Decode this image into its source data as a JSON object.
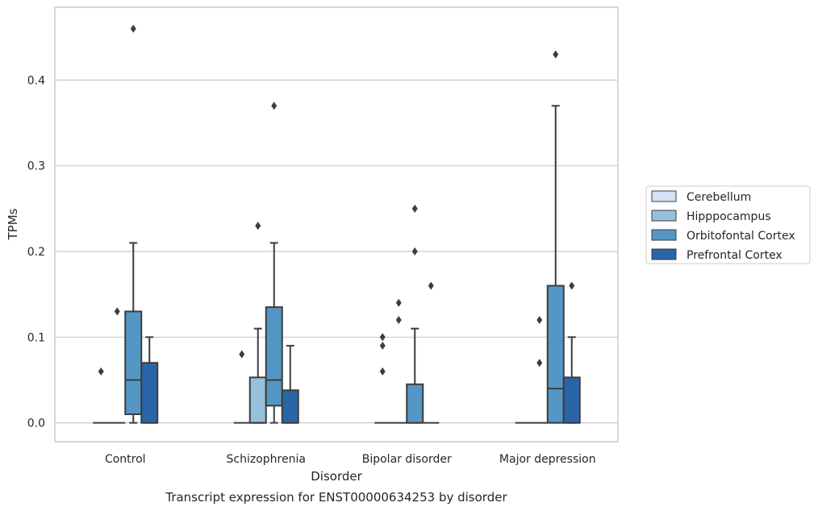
{
  "caption": "Transcript expression for ENST00000634253 by disorder",
  "chart_data": {
    "type": "box",
    "xlabel": "Disorder",
    "ylabel": "TPMs",
    "ylim": [
      -0.022,
      0.485
    ],
    "yticks": [
      0.0,
      0.1,
      0.2,
      0.3,
      0.4
    ],
    "ytick_labels": [
      "0.0",
      "0.1",
      "0.2",
      "0.3",
      "0.4"
    ],
    "grid": "horizontal",
    "legend_position": "right",
    "categories": [
      "Control",
      "Schizophrenia",
      "Bipolar disorder",
      "Major depression"
    ],
    "series": [
      {
        "name": "Cerebellum",
        "color": "#d4e3f3",
        "boxes": [
          {
            "q1": 0,
            "median": 0,
            "q3": 0,
            "whislo": 0,
            "whishi": 0,
            "fliers": [
              0.06
            ]
          },
          {
            "q1": 0,
            "median": 0,
            "q3": 0,
            "whislo": 0,
            "whishi": 0,
            "fliers": [
              0.08
            ]
          },
          {
            "q1": 0,
            "median": 0,
            "q3": 0,
            "whislo": 0,
            "whishi": 0,
            "fliers": [
              0.06,
              0.09,
              0.1
            ]
          },
          {
            "q1": 0,
            "median": 0,
            "q3": 0,
            "whislo": 0,
            "whishi": 0,
            "fliers": []
          }
        ]
      },
      {
        "name": "Hipppocampus",
        "color": "#96c0dc",
        "boxes": [
          {
            "q1": 0,
            "median": 0,
            "q3": 0,
            "whislo": 0,
            "whishi": 0,
            "fliers": [
              0.13
            ]
          },
          {
            "q1": 0,
            "median": 0,
            "q3": 0.053,
            "whislo": 0,
            "whishi": 0.11,
            "fliers": [
              0.23
            ]
          },
          {
            "q1": 0,
            "median": 0,
            "q3": 0,
            "whislo": 0,
            "whishi": 0,
            "fliers": [
              0.12,
              0.14
            ]
          },
          {
            "q1": 0,
            "median": 0,
            "q3": 0,
            "whislo": 0,
            "whishi": 0,
            "fliers": [
              0.07,
              0.12
            ]
          }
        ]
      },
      {
        "name": "Orbitofontal Cortex",
        "color": "#5497c5",
        "boxes": [
          {
            "q1": 0.01,
            "median": 0.05,
            "q3": 0.13,
            "whislo": 0,
            "whishi": 0.21,
            "fliers": [
              0.46
            ]
          },
          {
            "q1": 0.02,
            "median": 0.05,
            "q3": 0.135,
            "whislo": 0,
            "whishi": 0.21,
            "fliers": [
              0.37
            ]
          },
          {
            "q1": 0,
            "median": 0,
            "q3": 0.045,
            "whislo": 0,
            "whishi": 0.11,
            "fliers": [
              0.2,
              0.25
            ]
          },
          {
            "q1": 0,
            "median": 0.04,
            "q3": 0.16,
            "whislo": 0,
            "whishi": 0.37,
            "fliers": [
              0.43
            ]
          }
        ]
      },
      {
        "name": "Prefrontal Cortex",
        "color": "#2866a7",
        "boxes": [
          {
            "q1": 0,
            "median": 0,
            "q3": 0.07,
            "whislo": 0,
            "whishi": 0.1,
            "fliers": []
          },
          {
            "q1": 0,
            "median": 0,
            "q3": 0.038,
            "whislo": 0,
            "whishi": 0.09,
            "fliers": []
          },
          {
            "q1": 0,
            "median": 0,
            "q3": 0,
            "whislo": 0,
            "whishi": 0,
            "fliers": [
              0.16
            ]
          },
          {
            "q1": 0,
            "median": 0,
            "q3": 0.053,
            "whislo": 0,
            "whishi": 0.1,
            "fliers": [
              0.16
            ]
          }
        ]
      }
    ]
  }
}
